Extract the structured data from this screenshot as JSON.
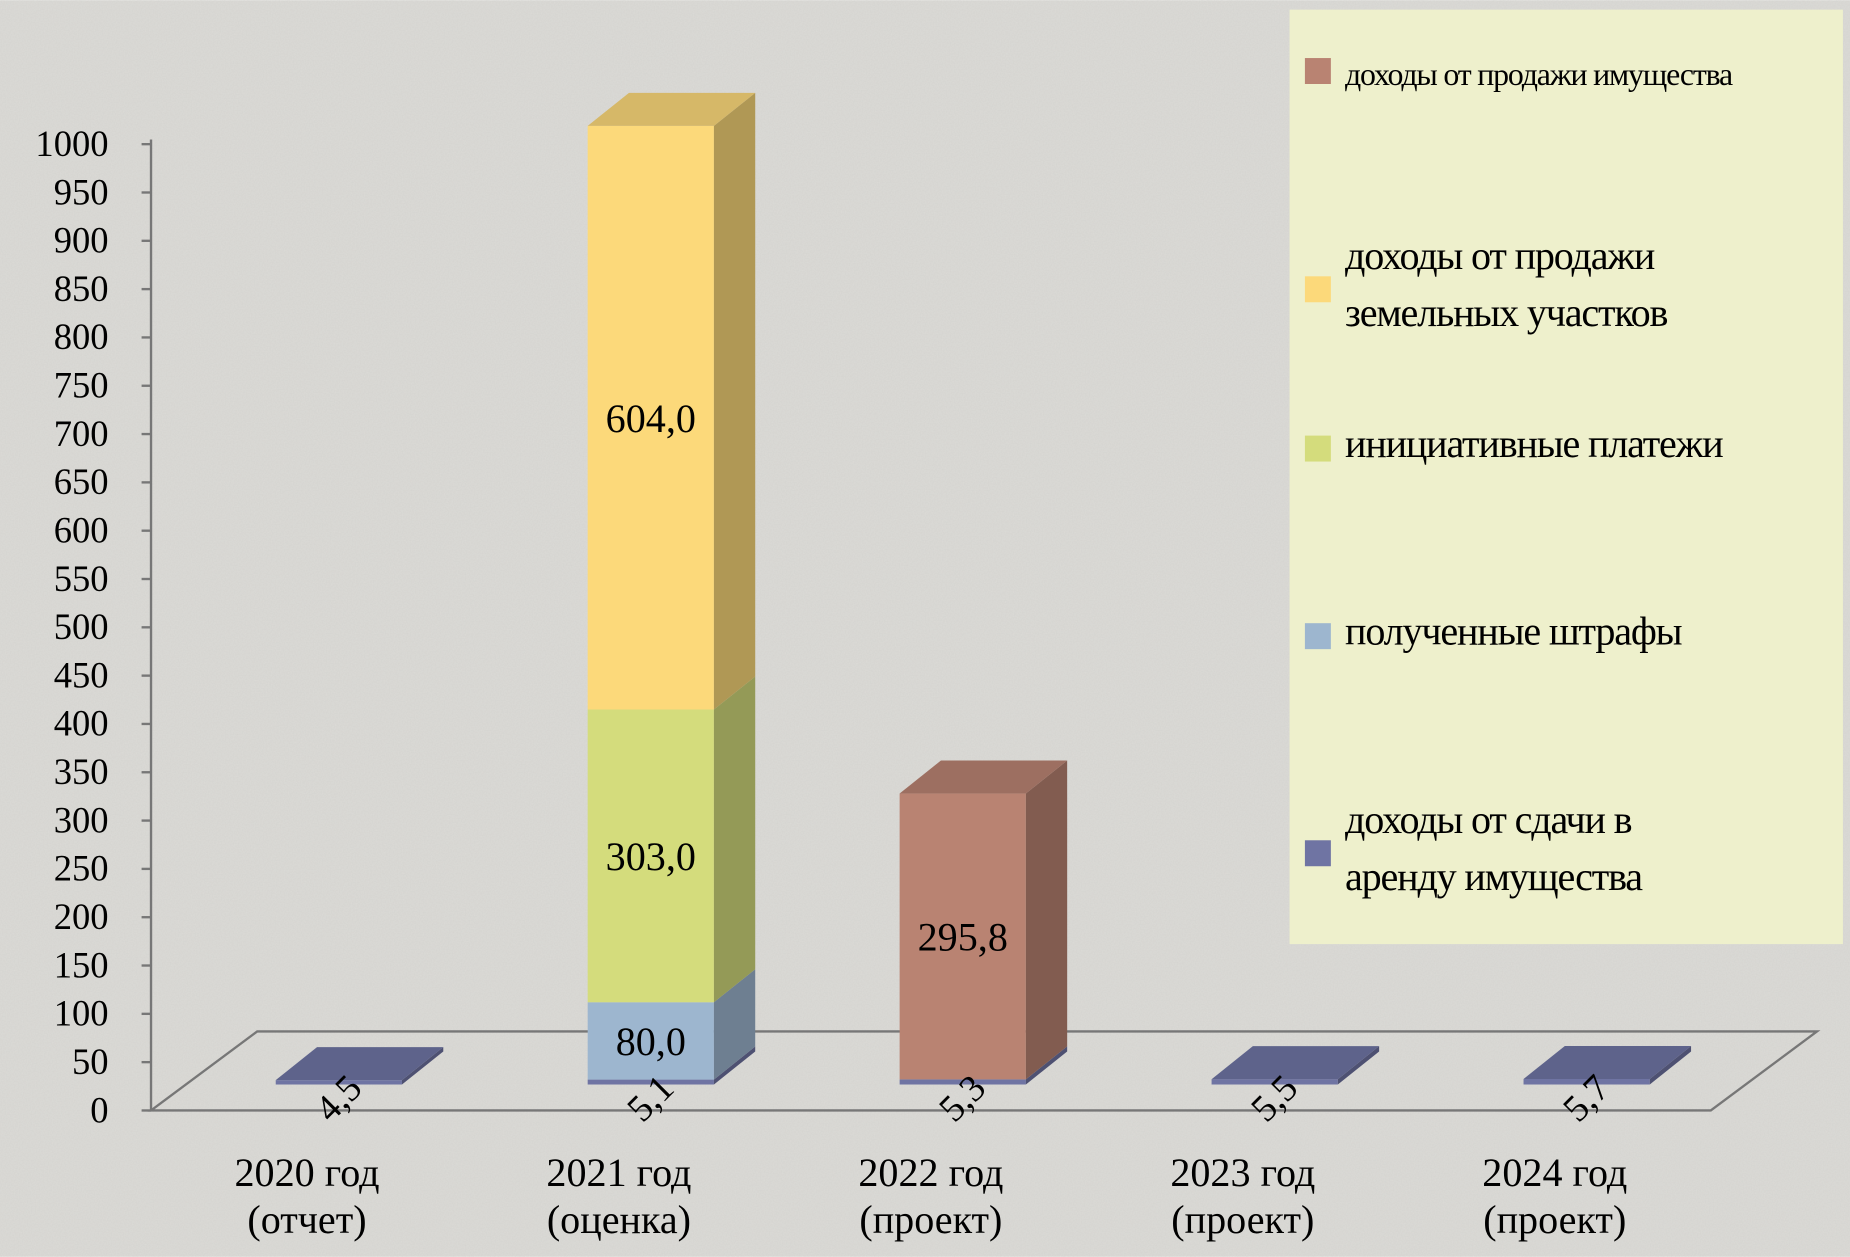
{
  "chart_data": {
    "type": "bar3d_stacked",
    "categories": [
      "2020 год\n(отчет)",
      "2021 год\n(оценка)",
      "2022 год\n(проект)",
      "2023 год\n(проект)",
      "2024 год\n(проект)"
    ],
    "series": [
      {
        "name": "доходы от сдачи в аренду имущества",
        "color": "#6f74a3",
        "values": [
          4.5,
          5.1,
          5.3,
          5.5,
          5.7
        ],
        "value_labels": [
          "4,5",
          "5,1",
          "5,3",
          "5,5",
          "5,7"
        ]
      },
      {
        "name": "полученные штрафы",
        "color": "#9db6cf",
        "values": [
          null,
          80,
          null,
          null,
          null
        ],
        "value_labels": [
          null,
          "80,0",
          null,
          null,
          null
        ]
      },
      {
        "name": "инициативные платежи",
        "color": "#d4dc7c",
        "values": [
          null,
          303,
          null,
          null,
          null
        ],
        "value_labels": [
          null,
          "303,0",
          null,
          null,
          null
        ]
      },
      {
        "name": "доходы от продажи земельных участков",
        "color": "#fcd97a",
        "values": [
          null,
          604,
          null,
          null,
          null
        ],
        "value_labels": [
          null,
          "604,0",
          null,
          null,
          null
        ]
      },
      {
        "name": "доходы от продажи имущества",
        "color": "#b98372",
        "values": [
          null,
          null,
          295.8,
          null,
          null
        ],
        "value_labels": [
          null,
          null,
          "295,8",
          null,
          null
        ]
      }
    ],
    "ylim": [
      0,
      1000
    ],
    "yticks": [
      0,
      50,
      100,
      150,
      200,
      250,
      300,
      350,
      400,
      450,
      500,
      550,
      600,
      650,
      700,
      750,
      800,
      850,
      900,
      950,
      1000
    ],
    "legend": "right"
  }
}
